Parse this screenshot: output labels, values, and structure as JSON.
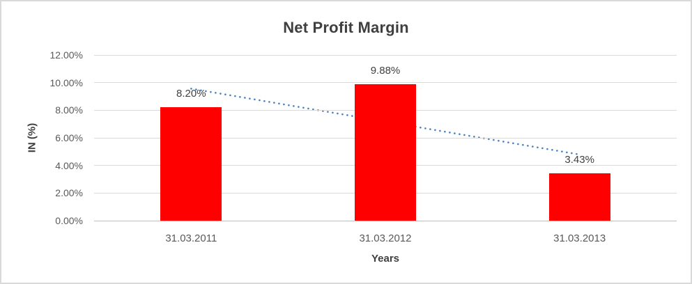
{
  "chart_data": {
    "type": "bar",
    "title": "Net Profit Margin",
    "xlabel": "Years",
    "ylabel": "IN (%)",
    "categories": [
      "31.03.2011",
      "31.03.2012",
      "31.03.2013"
    ],
    "series": [
      {
        "name": "Net Profit Margin",
        "values": [
          8.2,
          9.88,
          3.43
        ]
      }
    ],
    "data_labels": [
      "8.20%",
      "9.88%",
      "3.43%"
    ],
    "yticks": [
      "0.00%",
      "2.00%",
      "4.00%",
      "6.00%",
      "8.00%",
      "10.00%",
      "12.00%"
    ],
    "ytick_values": [
      0,
      2,
      4,
      6,
      8,
      10,
      12
    ],
    "ylim": [
      0,
      12
    ],
    "grid": true,
    "legend": "none",
    "trendline": {
      "type": "linear",
      "style": "dotted",
      "start_value": 9.56,
      "end_value": 4.79
    }
  },
  "colors": {
    "bar": "#ff0000",
    "trendline": "#4a80c0",
    "gridline": "#d9d9d9",
    "axis_line": "#bfbfbf",
    "title_text": "#3f3f3f",
    "tick_text": "#595959",
    "data_label_text": "#404040",
    "frame_border": "#d9d9d9"
  }
}
